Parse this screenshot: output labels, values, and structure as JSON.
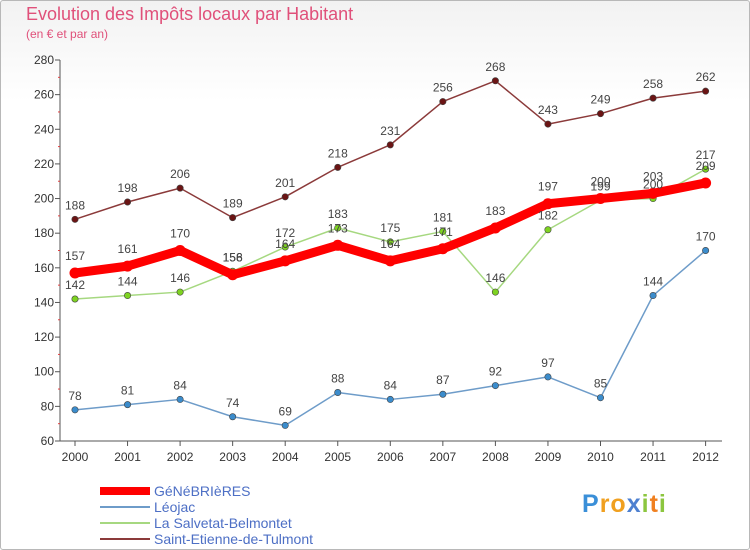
{
  "title": "Evolution des Impôts locaux par Habitant",
  "subtitle": "(en € et par an)",
  "logo": {
    "letters": [
      "P",
      "r",
      "o",
      "x",
      "i",
      "t",
      "i"
    ],
    "colors": [
      "#3a8fd8",
      "#f0a020",
      "#f0a020",
      "#4e80d0",
      "#8cc63f",
      "#f08020",
      "#8cc63f"
    ]
  },
  "chart_data": {
    "type": "line",
    "title": "Evolution des Impôts locaux par Habitant",
    "ylabel": "(en € et par an)",
    "xlabel": "",
    "x": [
      "2000",
      "2001",
      "2002",
      "2003",
      "2004",
      "2005",
      "2006",
      "2007",
      "2008",
      "2009",
      "2010",
      "2011",
      "2012"
    ],
    "ylim": [
      60,
      280
    ],
    "yticks": [
      60,
      80,
      100,
      120,
      140,
      160,
      180,
      200,
      220,
      240,
      260,
      280
    ],
    "grid": false,
    "legend_position": "bottom-left",
    "series": [
      {
        "name": "GéNéBRIèRES",
        "color": "#ff0000",
        "marker": "#ff0000",
        "style": "thick",
        "values": [
          157,
          161,
          170,
          156,
          164,
          173,
          164,
          171,
          183,
          197,
          200,
          203,
          209
        ],
        "labels": [
          "157",
          "161",
          "170",
          "156",
          "164",
          "173",
          "164",
          "171",
          "183",
          "197",
          "200",
          "203",
          "209"
        ]
      },
      {
        "name": "Léojac",
        "color": "#6e9cc9",
        "marker": "#3b8ccc",
        "style": "thin",
        "values": [
          78,
          81,
          84,
          74,
          69,
          88,
          84,
          87,
          92,
          97,
          85,
          144,
          170
        ],
        "labels": [
          "78",
          "81",
          "84",
          "74",
          "69",
          "88",
          "84",
          "87",
          "92",
          "97",
          "85",
          "144",
          "170"
        ]
      },
      {
        "name": "La Salvetat-Belmontet",
        "color": "#a6d880",
        "marker": "#7ed321",
        "style": "thin",
        "values": [
          142,
          144,
          146,
          158,
          172,
          183,
          175,
          181,
          146,
          182,
          199,
          200,
          217
        ],
        "labels": [
          "142",
          "144",
          "146",
          "158",
          "172",
          "183",
          "175",
          "181",
          "146",
          "182",
          "199",
          "200",
          "217"
        ]
      },
      {
        "name": "Saint-Etienne-de-Tulmont",
        "color": "#8b3a3a",
        "marker": "#6b1414",
        "style": "thin",
        "values": [
          188,
          198,
          206,
          189,
          201,
          218,
          231,
          256,
          268,
          243,
          249,
          258,
          262
        ],
        "labels": [
          "188",
          "198",
          "206",
          "189",
          "201",
          "218",
          "231",
          "256",
          "268",
          "243",
          "249",
          "258",
          "262"
        ]
      }
    ]
  }
}
